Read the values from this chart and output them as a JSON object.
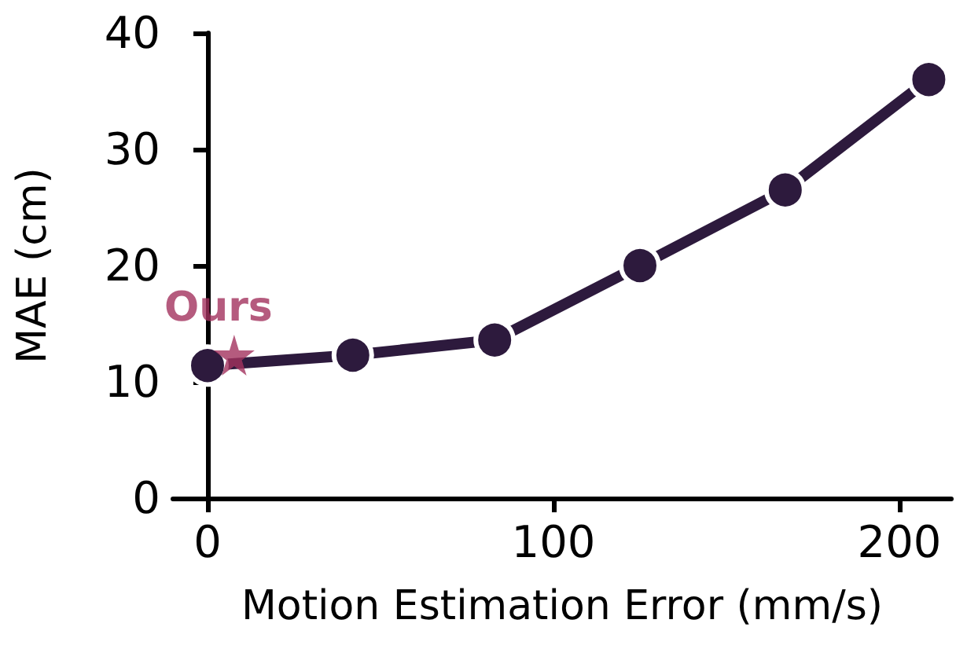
{
  "chart_data": {
    "type": "line",
    "xlabel": "Motion Estimation Error (mm/s)",
    "ylabel": "MAE (cm)",
    "xlim": [
      -10,
      215
    ],
    "xticks": [
      0,
      100,
      200
    ],
    "ylim": [
      0,
      40
    ],
    "yticks": [
      0,
      10,
      20,
      30,
      40
    ],
    "grid": false,
    "legend": false,
    "series": [
      {
        "color": "#2d1a3d",
        "marker": "circle",
        "line_style": "solid",
        "x": [
          0,
          42,
          83,
          125,
          167,
          208.5
        ],
        "values": [
          11.4,
          12.3,
          13.6,
          20.0,
          26.5,
          36.0
        ]
      },
      {
        "type": "scatter",
        "name": "Ours",
        "color": "#a3325e",
        "marker": "star",
        "x": [
          7.7
        ],
        "values": [
          12.3
        ]
      }
    ]
  }
}
